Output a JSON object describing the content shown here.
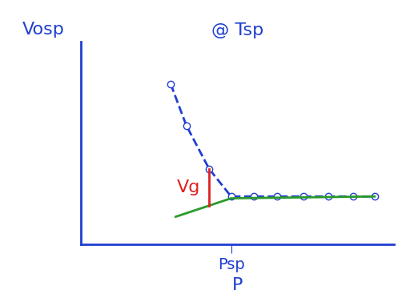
{
  "chart_data": {
    "type": "line",
    "title": "@ Tsp",
    "x_label": "P",
    "y_label": "Vosp",
    "series": [
      {
        "color": "#1f3fd0",
        "marker": "o",
        "line_style": "dashed",
        "x": [
          126,
          148,
          180,
          211,
          243,
          276,
          313,
          348,
          383,
          413
        ],
        "values": [
          174,
          129,
          82,
          52,
          52,
          52,
          52,
          52,
          52,
          52
        ]
      },
      {
        "color": "#2a9a2a",
        "line_style": "solid",
        "x": [
          133,
          211,
          413
        ],
        "values": [
          30,
          50,
          52
        ]
      }
    ],
    "annotations": [
      {
        "text": "Vg",
        "color": "#e02020"
      }
    ],
    "xlim": [
      0,
      440
    ],
    "ylim": [
      0,
      220
    ],
    "xticks": [
      {
        "value": 211,
        "label": "Psp"
      }
    ],
    "yticks": [],
    "tick_labels": "x",
    "grid": false
  }
}
